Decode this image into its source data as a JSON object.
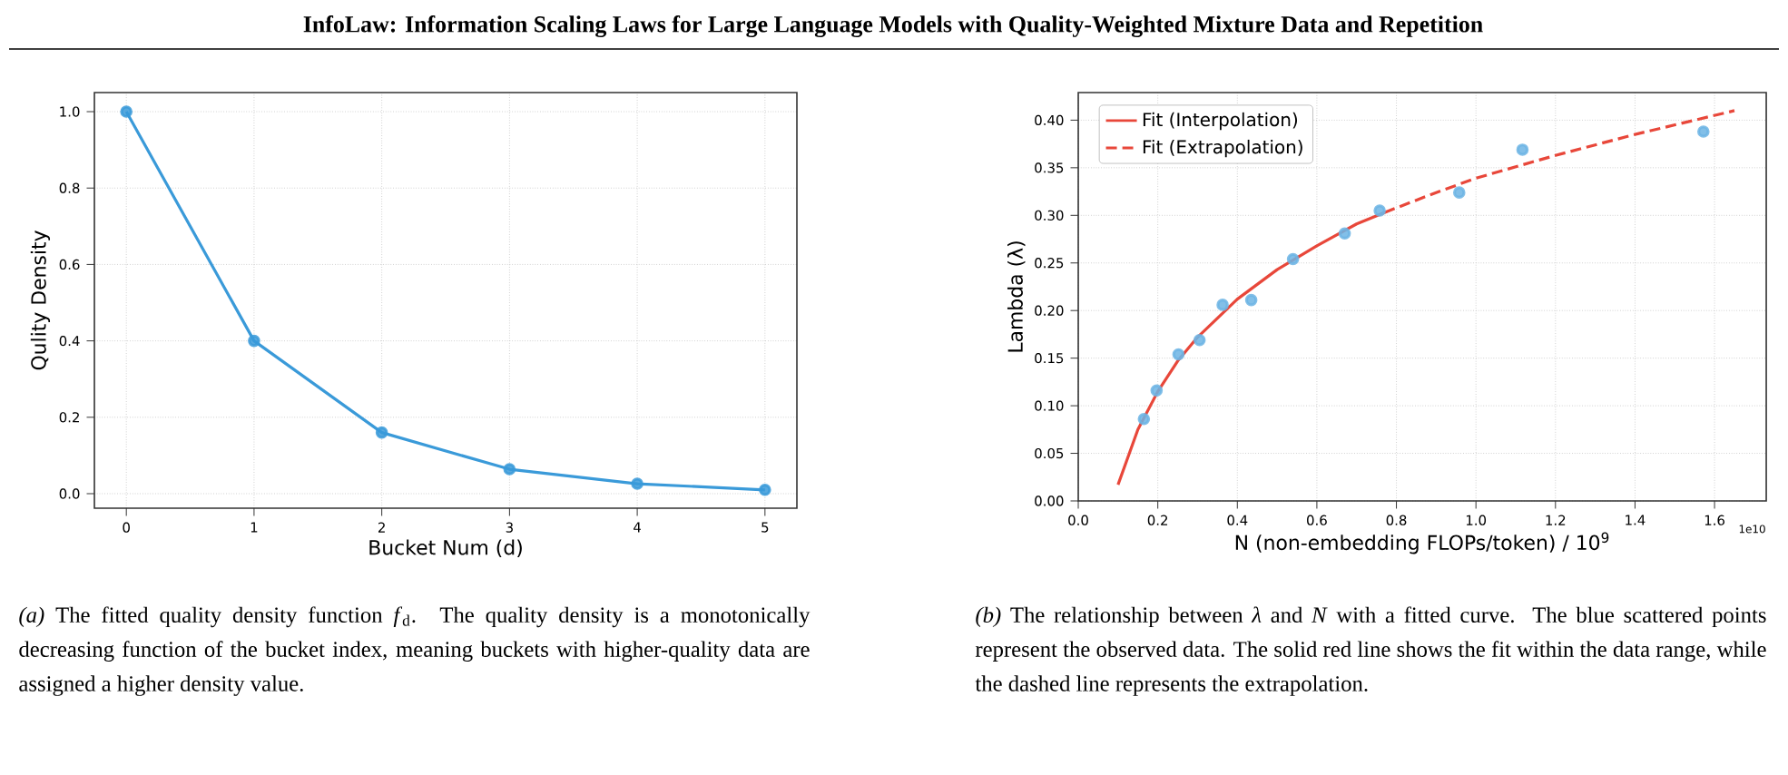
{
  "chart_data": [
    {
      "type": "line",
      "title": "InfoLaw: Information Scaling Laws for Large Language Models with Quality-Weighted Mixture Data and Repetition",
      "xlabel": "Bucket Num (d)",
      "ylabel": "Qulity Density",
      "x": [
        0,
        1,
        2,
        3,
        4,
        5
      ],
      "values": [
        1.0,
        0.4,
        0.16,
        0.064,
        0.026,
        0.01
      ],
      "color": "#3a9ad9",
      "marker": "circle",
      "grid": true,
      "xlim": [
        -0.25,
        5.25
      ],
      "ylim": [
        -0.038,
        1.05
      ],
      "xticks": [
        0,
        1,
        2,
        3,
        4,
        5
      ],
      "yticks": [
        {
          "value": 0,
          "label": "0.0"
        },
        0.2,
        0.4,
        0.6,
        0.8,
        {
          "value": 1,
          "label": "1.0"
        }
      ],
      "annotations": [
        "*(a)* The fitted quality density function *f*$_{d}$. The quality density is a monotonically decreasing function of the bucket index, meaning buckets with higher-quality data are assigned a higher density value."
      ]
    },
    {
      "type": "scatter",
      "xlabel": "N (non-embedding FLOPs/token) / 10$^{9}$",
      "ylabel": "Lambda (λ)",
      "grid": true,
      "legend": "top left",
      "marker": "circle",
      "xlim": [
        0,
        1.73
      ],
      "ylim": [
        0,
        0.429
      ],
      "xticks": [
        {
          "value": 0,
          "label": "0.0"
        },
        0.2,
        0.4,
        0.6,
        0.8,
        {
          "value": 1,
          "label": "1.0"
        },
        1.2,
        1.4,
        1.6
      ],
      "yticks": [
        {
          "value": 0,
          "label": "0.00"
        },
        0.05,
        {
          "value": 0.1,
          "label": "0.10"
        },
        0.15,
        {
          "value": 0.2,
          "label": "0.20"
        },
        0.25,
        {
          "value": 0.3,
          "label": "0.30"
        },
        0.35,
        {
          "value": 0.4,
          "label": "0.40"
        }
      ],
      "series": [
        {
          "type": "scatter",
          "color": "#6cb4e4",
          "x": [
            0.165,
            0.197,
            0.252,
            0.305,
            0.363,
            0.435,
            0.54,
            0.67,
            0.758,
            0.958,
            1.117,
            1.572
          ],
          "values": [
            0.086,
            0.116,
            0.154,
            0.169,
            0.206,
            0.211,
            0.254,
            0.281,
            0.305,
            0.324,
            0.369,
            0.388
          ]
        },
        {
          "type": "line",
          "name": "Fit (Interpolation)",
          "color": "#e8473a",
          "line_style": "solid",
          "marker": "none",
          "x": [
            0.1,
            0.15,
            0.2,
            0.25,
            0.3,
            0.4,
            0.5,
            0.6,
            0.7,
            0.77
          ],
          "values": [
            0.017,
            0.075,
            0.115,
            0.147,
            0.172,
            0.212,
            0.243,
            0.268,
            0.291,
            0.303
          ]
        },
        {
          "type": "line",
          "name": "Fit (Extrapolation)",
          "color": "#e8473a",
          "line_style": "dashed",
          "marker": "none",
          "x": [
            0.77,
            0.9,
            1.0,
            1.2,
            1.4,
            1.65
          ],
          "values": [
            0.303,
            0.324,
            0.339,
            0.363,
            0.385,
            0.41
          ]
        }
      ],
      "annotations": [
        "*(b)* The relationship between *λ* and *N* with a fitted curve. The blue scattered points represent the observed data. The solid red line shows the fit within the data range, while the dashed line represents the extrapolation.",
        "1e10"
      ]
    }
  ]
}
